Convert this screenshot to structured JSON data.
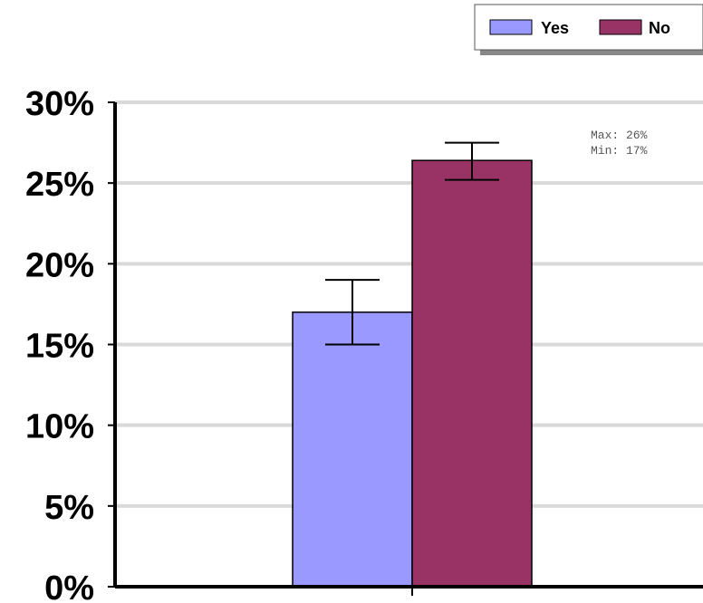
{
  "chart_data": {
    "type": "bar",
    "categories": [
      ""
    ],
    "series": [
      {
        "name": "Yes",
        "values": [
          17
        ],
        "error_low": [
          15
        ],
        "error_high": [
          19
        ],
        "color": "#9999ff"
      },
      {
        "name": "No",
        "values": [
          26.4
        ],
        "error_low": [
          25.2
        ],
        "error_high": [
          27.5
        ],
        "color": "#993366"
      }
    ],
    "ylim": [
      0,
      30
    ],
    "yticks": [
      {
        "value": 0,
        "label": "0%"
      },
      {
        "value": 5,
        "label": "5%"
      },
      {
        "value": 10,
        "label": "10%"
      },
      {
        "value": 15,
        "label": "15%"
      },
      {
        "value": 20,
        "label": "20%"
      },
      {
        "value": 25,
        "label": "25%"
      },
      {
        "value": 30,
        "label": "30%"
      }
    ],
    "grid": true,
    "legend_position": "top-right",
    "annotations": {
      "max": "Max: 26%",
      "min": "Min: 17%"
    },
    "title": "",
    "xlabel": "",
    "ylabel": ""
  }
}
